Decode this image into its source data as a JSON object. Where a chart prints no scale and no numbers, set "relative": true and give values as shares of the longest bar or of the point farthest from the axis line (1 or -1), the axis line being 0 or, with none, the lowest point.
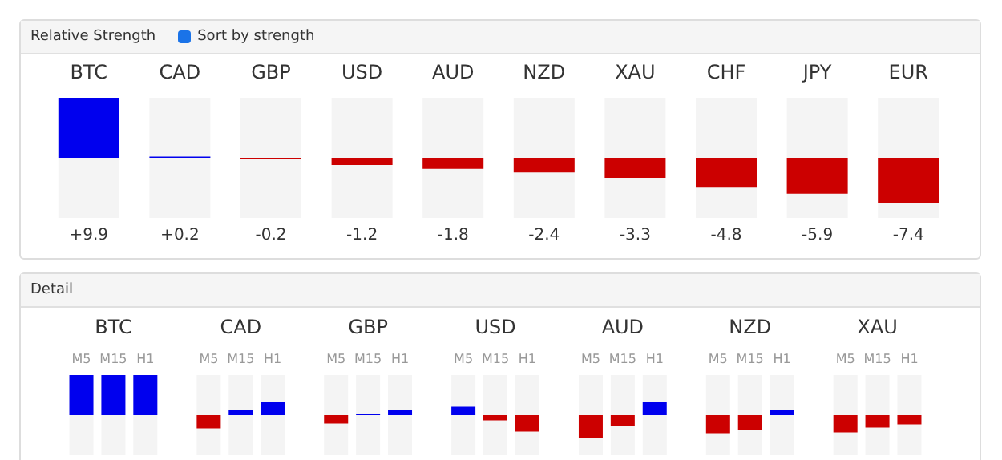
{
  "chart_data": [
    {
      "type": "bar",
      "title": "Relative Strength",
      "annotations": [
        "Sort by strength"
      ],
      "categories": [
        "BTC",
        "CAD",
        "GBP",
        "USD",
        "AUD",
        "NZD",
        "XAU",
        "CHF",
        "JPY",
        "EUR"
      ],
      "values": [
        9.9,
        0.2,
        -0.2,
        -1.2,
        -1.8,
        -2.4,
        -3.3,
        -4.8,
        -5.9,
        -7.4
      ],
      "value_labels": [
        "+9.9",
        "+0.2",
        "-0.2",
        "-1.2",
        "-1.8",
        "-2.4",
        "-3.3",
        "-4.8",
        "-5.9",
        "-7.4"
      ],
      "colors": [
        "#0000ee",
        "#0000ee",
        "#cc0000",
        "#cc0000",
        "#cc0000",
        "#cc0000",
        "#cc0000",
        "#cc0000",
        "#cc0000",
        "#cc0000"
      ]
    },
    {
      "type": "bar",
      "title": "Detail",
      "relative": true,
      "categories": [
        "BTC",
        "CAD",
        "GBP",
        "USD",
        "AUD",
        "NZD",
        "XAU"
      ],
      "series": [
        {
          "name": "M5",
          "values": [
            1,
            -0.33,
            -0.21,
            0.21,
            -0.57,
            -0.45,
            -0.43
          ],
          "colors": [
            "#0000ee",
            "#cc0000",
            "#cc0000",
            "#0000ee",
            "#cc0000",
            "#cc0000",
            "#cc0000"
          ]
        },
        {
          "name": "M15",
          "values": [
            1,
            0.13,
            0.04,
            -0.13,
            -0.27,
            -0.37,
            -0.31
          ],
          "colors": [
            "#0000ee",
            "#0000ee",
            "#0000ee",
            "#cc0000",
            "#cc0000",
            "#cc0000",
            "#cc0000"
          ]
        },
        {
          "name": "H1",
          "values": [
            1,
            0.32,
            0.13,
            -0.41,
            0.32,
            0.13,
            -0.23
          ],
          "colors": [
            "#0000ee",
            "#0000ee",
            "#0000ee",
            "#cc0000",
            "#0000ee",
            "#0000ee",
            "#cc0000"
          ]
        }
      ]
    }
  ]
}
